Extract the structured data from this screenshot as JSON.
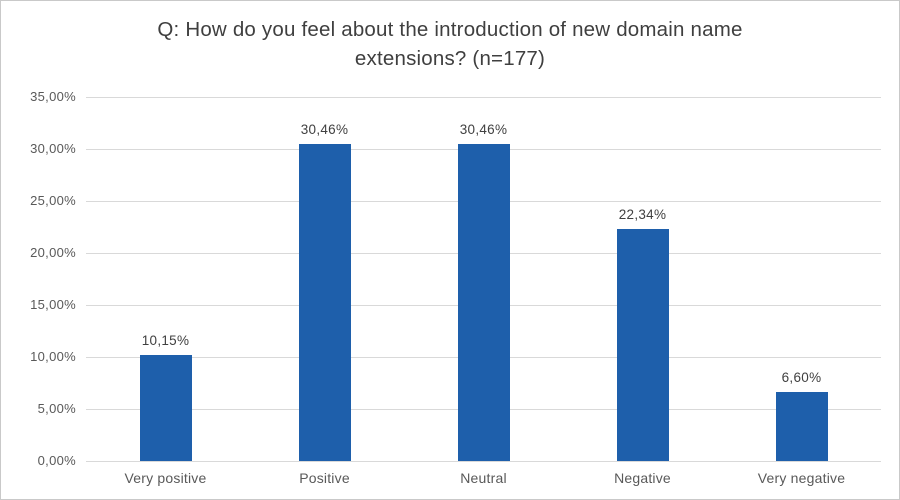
{
  "chart_data": {
    "type": "bar",
    "title": "Q: How do you feel about the introduction of new domain name extensions? (n=177)",
    "categories": [
      "Very positive",
      "Positive",
      "Neutral",
      "Negative",
      "Very negative"
    ],
    "values": [
      10.15,
      30.46,
      30.46,
      22.34,
      6.6
    ],
    "value_labels": [
      "10,15%",
      "30,46%",
      "30,46%",
      "22,34%",
      "6,60%"
    ],
    "y_tick_labels": [
      "0,00%",
      "5,00%",
      "10,00%",
      "15,00%",
      "20,00%",
      "25,00%",
      "30,00%",
      "35,00%"
    ],
    "ylim": [
      0,
      35
    ],
    "y_step": 5,
    "xlabel": "",
    "ylabel": "",
    "grid": "horizontal gridlines on",
    "legend": "none",
    "colors": {
      "bar": "#1e5fab",
      "gridline": "#d9d9d9",
      "title_text": "#3f3f3f",
      "axis_text": "#595959",
      "value_label_text": "#404040",
      "frame_border": "#c9c9c9",
      "background": "#ffffff"
    }
  }
}
